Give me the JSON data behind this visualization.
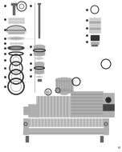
{
  "bg_color": "#ffffff",
  "fig_width": 1.52,
  "fig_height": 1.9,
  "dpi": 100,
  "dark": "#2a2a2a",
  "med": "#666666",
  "light": "#aaaaaa",
  "vlight": "#cccccc",
  "silver": "#b0b0b0",
  "darkgray": "#444444"
}
